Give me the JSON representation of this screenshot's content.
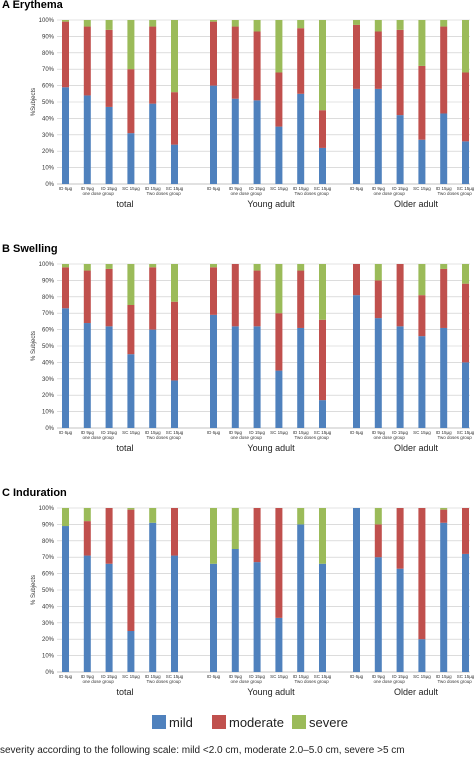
{
  "chart_data": {
    "type": "bar",
    "stacked": true,
    "ylim": [
      0,
      100
    ],
    "yticks": [
      "0%",
      "10%",
      "20%",
      "30%",
      "40%",
      "50%",
      "60%",
      "70%",
      "80%",
      "90%",
      "100%"
    ],
    "categories": [
      "ID 6µg",
      "ID 9µg",
      "ID 15µg",
      "SC 15µg",
      "ID 15µg",
      "SC 15µg"
    ],
    "subgroup_labels": [
      "one dose group",
      "Two doses group"
    ],
    "sections": [
      "total",
      "Young adult",
      "Older adult"
    ],
    "series_names": [
      "mild",
      "moderate",
      "severe"
    ],
    "colors": {
      "mild": "#4f81bd",
      "moderate": "#c0504d",
      "severe": "#9bbb59"
    },
    "grid": true,
    "legend": "bottom",
    "panels": [
      {
        "title": "A Erythema",
        "ylabel": "%Subjects",
        "groups": [
          {
            "mild": [
              59,
              54,
              47,
              31,
              49,
              24
            ],
            "moderate": [
              40,
              42,
              47,
              39,
              47,
              32
            ]
          },
          {
            "mild": [
              60,
              52,
              51,
              35,
              55,
              22
            ],
            "moderate": [
              39,
              44,
              42,
              33,
              40,
              23
            ]
          },
          {
            "mild": [
              58,
              58,
              42,
              27,
              43,
              26
            ],
            "moderate": [
              39,
              35,
              52,
              45,
              53,
              42
            ]
          }
        ]
      },
      {
        "title": "B Swelling",
        "ylabel": "% Subjects",
        "groups": [
          {
            "mild": [
              73,
              64,
              62,
              45,
              60,
              29
            ],
            "moderate": [
              25,
              32,
              35,
              30,
              38,
              48
            ]
          },
          {
            "mild": [
              69,
              62,
              62,
              35,
              61,
              17
            ],
            "moderate": [
              29,
              38,
              34,
              35,
              35,
              49
            ]
          },
          {
            "mild": [
              81,
              67,
              62,
              56,
              61,
              40
            ],
            "moderate": [
              19,
              23,
              38,
              25,
              36,
              48
            ]
          }
        ]
      },
      {
        "title": "C Induration",
        "ylabel": "% Subjects",
        "groups": [
          {
            "mild": [
              89,
              71,
              66,
              25,
              91,
              71
            ],
            "moderate": [
              0,
              21,
              34,
              74,
              0,
              29
            ]
          },
          {
            "mild": [
              66,
              75,
              67,
              33,
              90,
              66
            ],
            "moderate": [
              0,
              0,
              33,
              67,
              0,
              0
            ]
          },
          {
            "mild": [
              100,
              70,
              63,
              20,
              91,
              72
            ],
            "moderate": [
              0,
              20,
              37,
              80,
              8,
              28
            ]
          }
        ]
      }
    ]
  },
  "footnote": "severity according to the following scale: mild <2.0 cm, moderate 2.0–5.0 cm, severe >5 cm"
}
